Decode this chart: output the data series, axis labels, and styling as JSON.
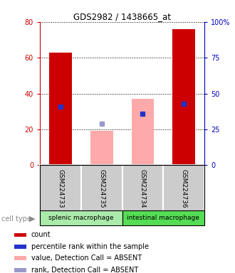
{
  "title": "GDS2982 / 1438665_at",
  "samples": [
    "GSM224733",
    "GSM224735",
    "GSM224734",
    "GSM224736"
  ],
  "cell_groups": [
    {
      "label": "splenic macrophage",
      "color": "#aaeaaa"
    },
    {
      "label": "intestinal macrophage",
      "color": "#55dd55"
    }
  ],
  "red_bar_values": [
    63,
    0,
    0,
    76
  ],
  "pink_bar_values": [
    0,
    19,
    37,
    0
  ],
  "blue_sq_values": [
    41,
    0,
    36,
    43
  ],
  "blue_sq_absent_values": [
    0,
    29,
    0,
    0
  ],
  "ylim_left": [
    0,
    80
  ],
  "ylim_right": [
    0,
    100
  ],
  "yticks_left": [
    0,
    20,
    40,
    60,
    80
  ],
  "yticks_right": [
    0,
    25,
    50,
    75,
    100
  ],
  "left_tick_labels": [
    "0",
    "20",
    "40",
    "60",
    "80"
  ],
  "right_tick_labels": [
    "0",
    "25",
    "50",
    "75",
    "100%"
  ],
  "left_color": "#cc0000",
  "right_color": "#0000bb",
  "red_bar_color": "#cc0000",
  "pink_bar_color": "#ffaaaa",
  "blue_sq_color": "#2233cc",
  "blue_sq_absent_color": "#9999cc",
  "label_bg_color": "#cccccc",
  "legend_items": [
    {
      "color": "#cc0000",
      "label": "count"
    },
    {
      "color": "#2233cc",
      "label": "percentile rank within the sample"
    },
    {
      "color": "#ffaaaa",
      "label": "value, Detection Call = ABSENT"
    },
    {
      "color": "#9999cc",
      "label": "rank, Detection Call = ABSENT"
    }
  ]
}
